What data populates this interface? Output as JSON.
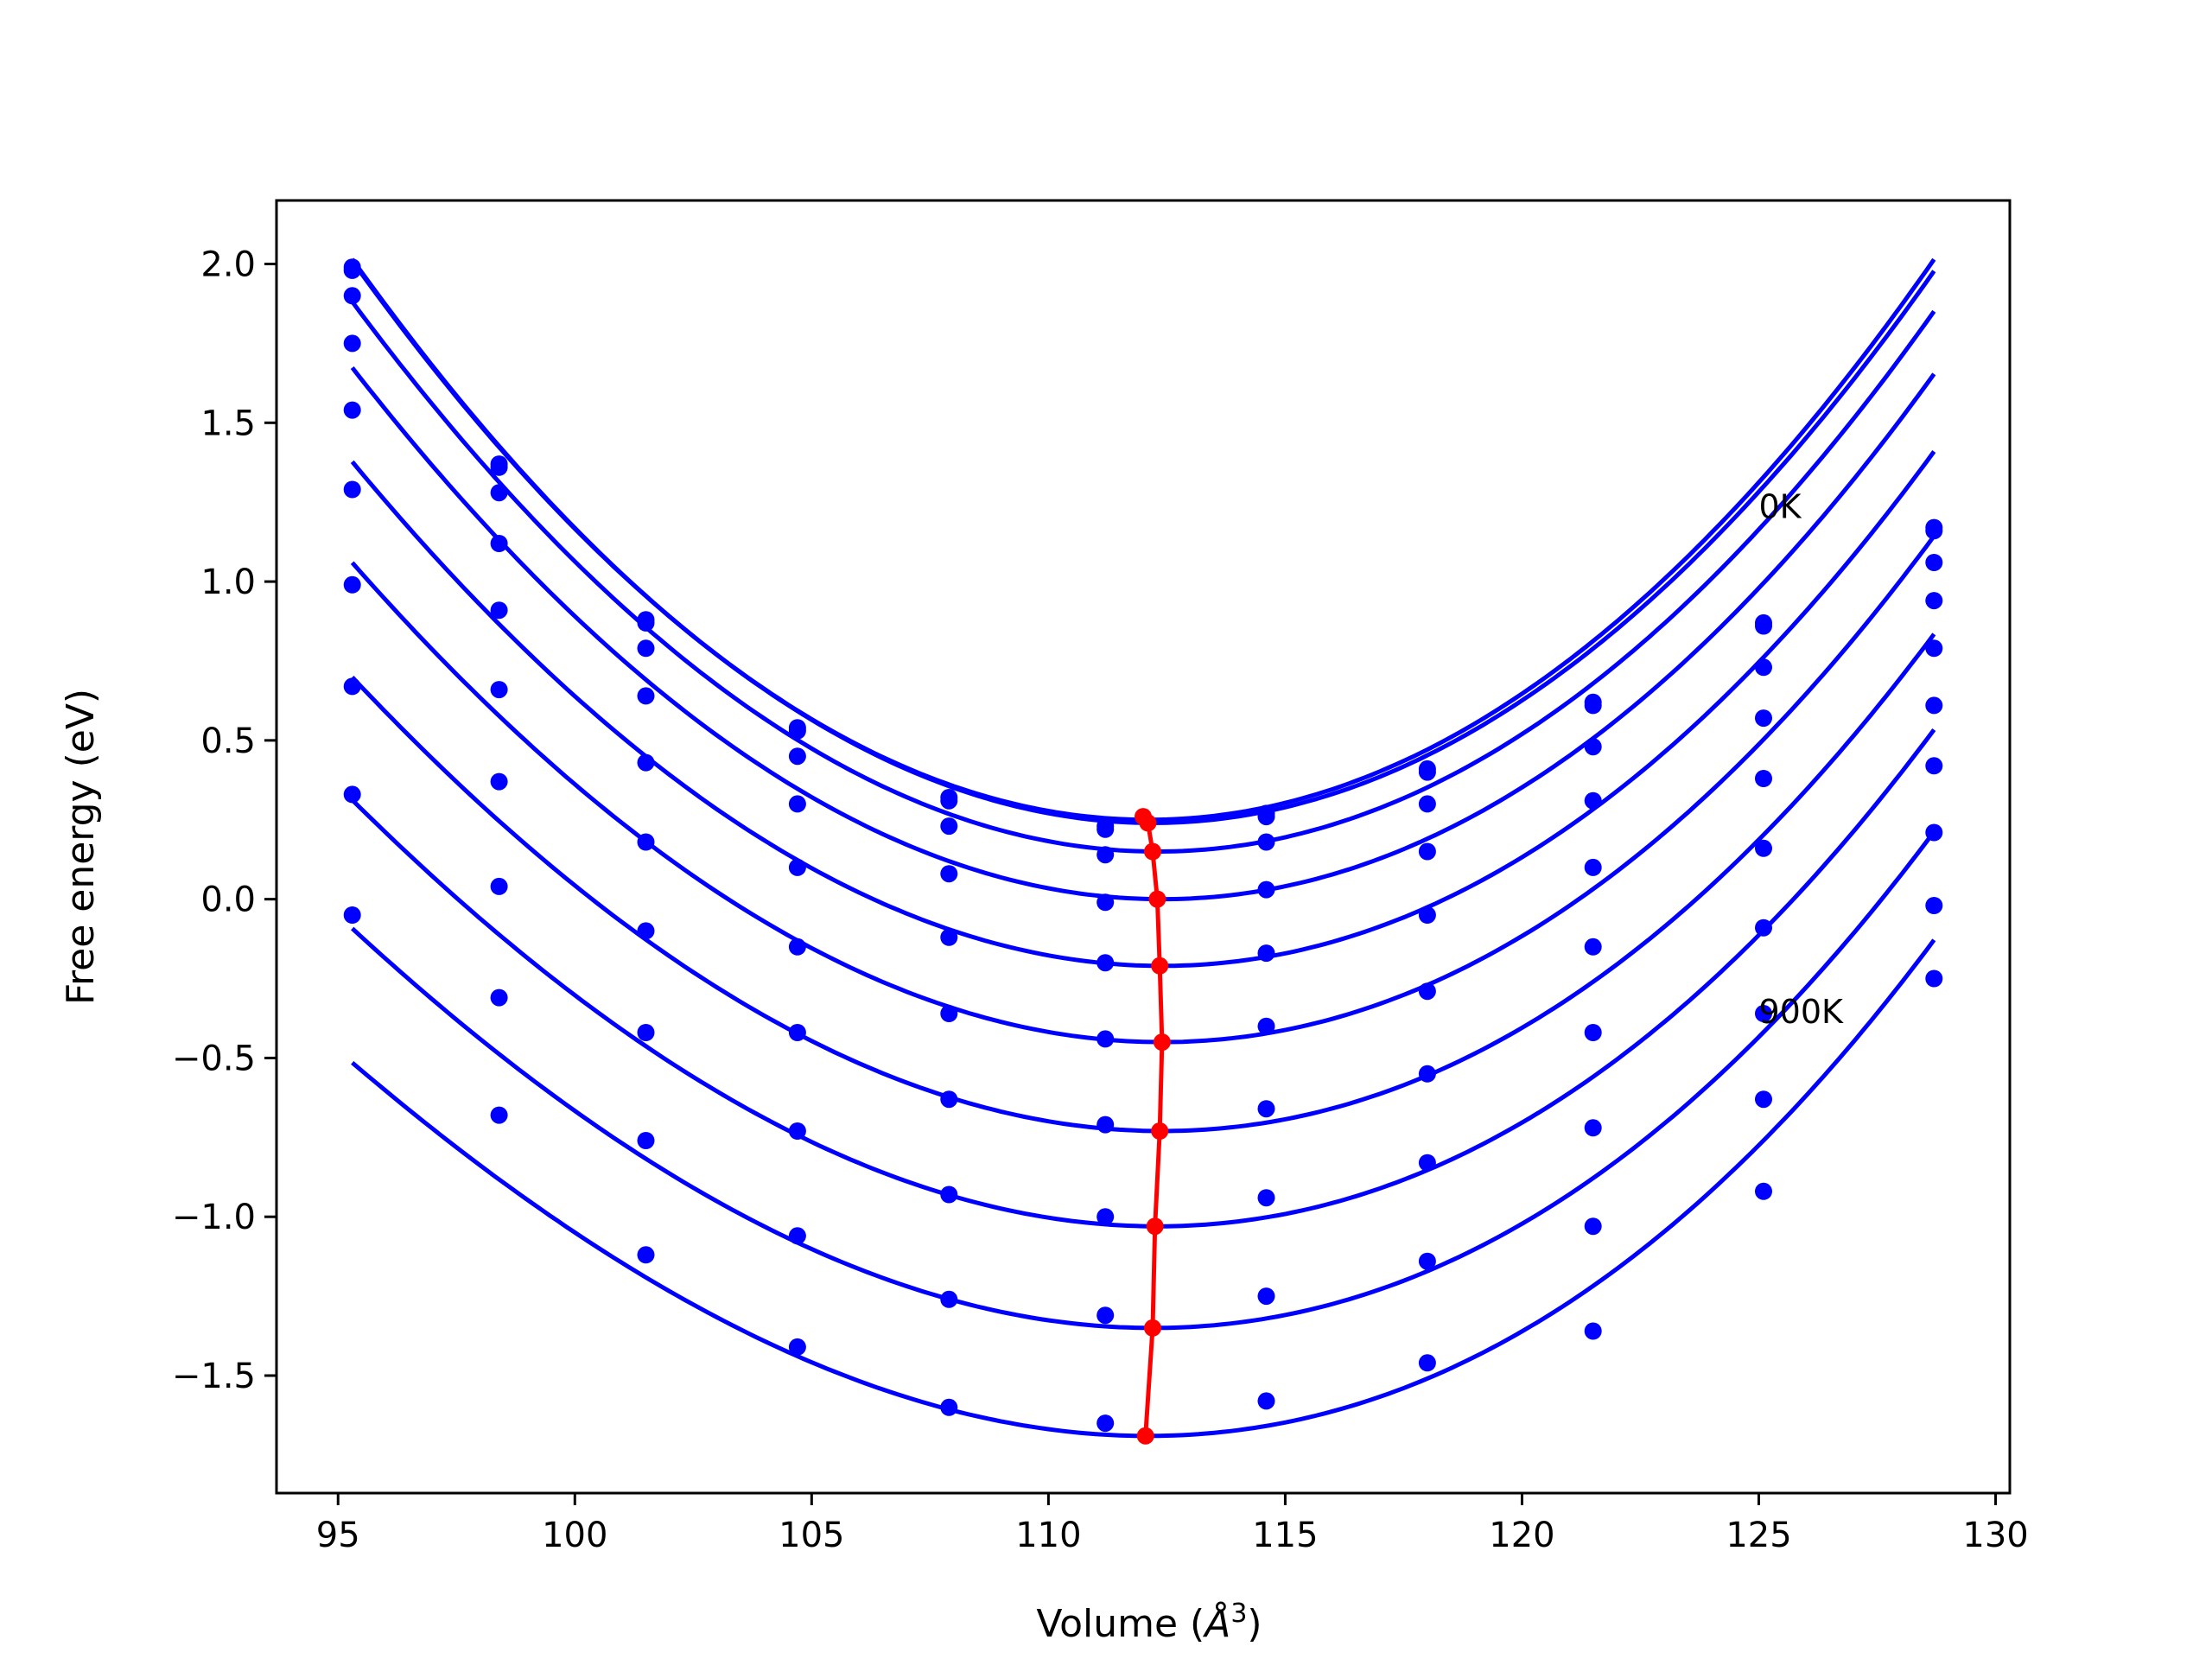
{
  "chart_data": {
    "type": "line",
    "title": "",
    "xlabel_main": "Volume (",
    "xlabel_unit": "Å",
    "xlabel_exp": "3",
    "xlabel_end": ")",
    "ylabel": "Free energy (eV)",
    "xlim": [
      93.7,
      130.3
    ],
    "ylim": [
      -1.87,
      2.2
    ],
    "xticks": [
      95,
      100,
      105,
      110,
      115,
      120,
      125,
      130
    ],
    "yticks": [
      2.0,
      1.5,
      1.0,
      0.5,
      0.0,
      -0.5,
      -1.0,
      -1.5
    ],
    "ytick_labels": [
      "2.0",
      "1.5",
      "1.0",
      "0.5",
      "0.0",
      "−0.5",
      "−1.0",
      "−1.5"
    ],
    "grid": false,
    "annotations": [
      {
        "text": "0K",
        "x": 125.0,
        "y": 1.2
      },
      {
        "text": "900K",
        "x": 125.0,
        "y": -0.39
      }
    ],
    "points_color": "#0000ff",
    "fit_color": "#0000ff",
    "min_color": "#ff0000",
    "x": [
      95.3,
      98.4,
      101.5,
      104.7,
      107.9,
      111.2,
      114.6,
      118.0,
      121.5,
      125.1,
      128.7
    ],
    "series": [
      {
        "points": [
          1.99,
          1.37,
          0.88,
          0.54,
          0.32,
          0.23,
          0.27,
          0.41,
          0.62,
          0.87,
          1.17
        ],
        "fit": {
          "vmin": 112.1,
          "fmin": 0.25,
          "k": 0.00632,
          "c": 5e-06
        }
      },
      {
        "points": [
          1.98,
          1.36,
          0.87,
          0.53,
          0.31,
          0.22,
          0.26,
          0.4,
          0.61,
          0.86,
          1.16
        ],
        "fit": {
          "vmin": 112.2,
          "fmin": 0.24,
          "k": 0.0063,
          "c": 5e-06
        }
      },
      {
        "points": [
          1.9,
          1.28,
          0.79,
          0.45,
          0.23,
          0.14,
          0.18,
          0.3,
          0.48,
          0.73,
          1.06
        ],
        "fit": {
          "vmin": 112.3,
          "fmin": 0.15,
          "k": 0.00616,
          "c": 1e-05
        }
      },
      {
        "points": [
          1.75,
          1.12,
          0.64,
          0.3,
          0.08,
          -0.01,
          0.03,
          0.15,
          0.31,
          0.57,
          0.94
        ],
        "fit": {
          "vmin": 112.4,
          "fmin": 0.0,
          "k": 0.00598,
          "c": 1.5e-05
        }
      },
      {
        "points": [
          1.54,
          0.91,
          0.43,
          0.1,
          -0.12,
          -0.2,
          -0.17,
          -0.05,
          0.1,
          0.38,
          0.79
        ],
        "fit": {
          "vmin": 112.4,
          "fmin": -0.21,
          "k": 0.00577,
          "c": 2e-05
        }
      },
      {
        "points": [
          1.29,
          0.66,
          0.18,
          -0.15,
          -0.36,
          -0.44,
          -0.4,
          -0.29,
          -0.15,
          0.16,
          0.61
        ],
        "fit": {
          "vmin": 112.4,
          "fmin": -0.45,
          "k": 0.00559,
          "c": 2.5e-05
        }
      },
      {
        "points": [
          0.99,
          0.37,
          -0.1,
          -0.42,
          -0.63,
          -0.71,
          -0.66,
          -0.55,
          -0.42,
          -0.09,
          0.42
        ],
        "fit": {
          "vmin": 112.4,
          "fmin": -0.73,
          "k": 0.0054,
          "c": 3e-05
        }
      },
      {
        "points": [
          0.67,
          0.04,
          -0.42,
          -0.73,
          -0.93,
          -1.0,
          -0.94,
          -0.83,
          -0.72,
          -0.36,
          0.21
        ],
        "fit": {
          "vmin": 112.3,
          "fmin": -1.03,
          "k": 0.00524,
          "c": 3.5e-05
        }
      },
      {
        "points": [
          0.33,
          -0.31,
          -0.76,
          -1.06,
          -1.26,
          -1.31,
          -1.25,
          -1.14,
          -1.03,
          -0.63,
          -0.02
        ],
        "fit": {
          "vmin": 112.2,
          "fmin": -1.35,
          "k": 0.00508,
          "c": 4e-05
        }
      },
      {
        "points": [
          -0.05,
          -0.68,
          -1.12,
          -1.41,
          -1.6,
          -1.65,
          -1.58,
          -1.46,
          -1.36,
          -0.92,
          -0.25
        ],
        "fit": {
          "vmin": 112.1,
          "fmin": -1.69,
          "k": 0.00492,
          "c": 4.5e-05
        }
      }
    ],
    "minima": {
      "x": [
        112.0,
        112.1,
        112.2,
        112.3,
        112.35,
        112.4,
        112.35,
        112.25,
        112.2,
        112.05
      ],
      "y": [
        0.26,
        0.24,
        0.15,
        0.0,
        -0.21,
        -0.45,
        -0.73,
        -1.03,
        -1.35,
        -1.69
      ]
    }
  }
}
